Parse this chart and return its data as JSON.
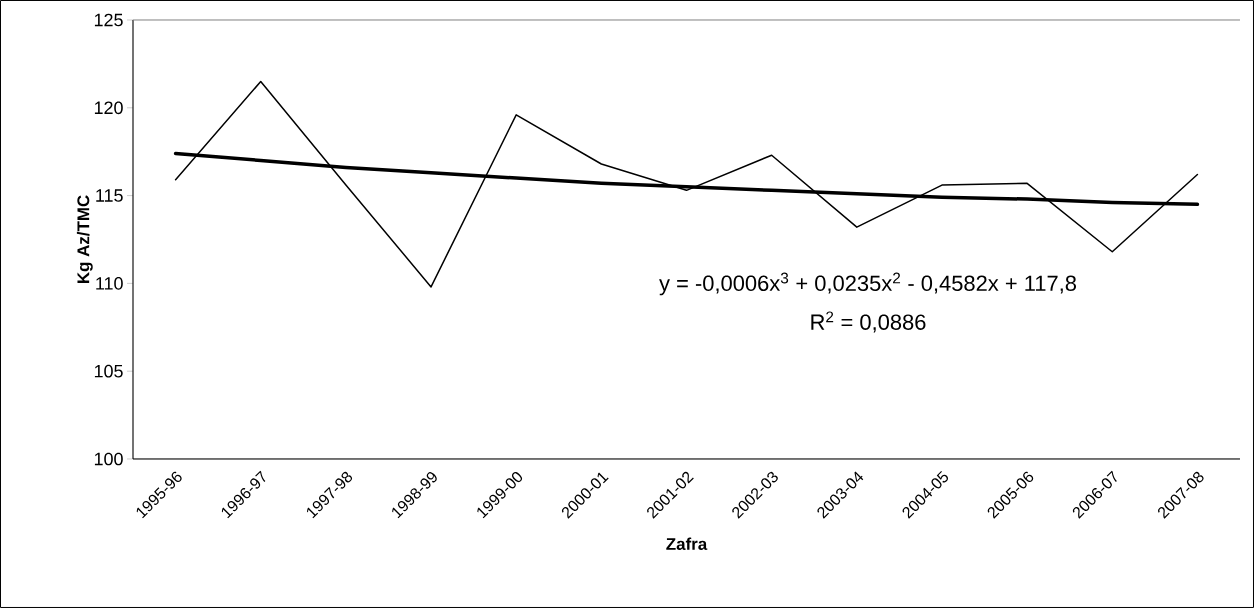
{
  "chart_data": {
    "type": "line",
    "xlabel": "Zafra",
    "ylabel": "Kg Az/TMC",
    "categories": [
      "1995-96",
      "1996-97",
      "1997-98",
      "1998-99",
      "1999-00",
      "2000-01",
      "2001-02",
      "2002-03",
      "2003-04",
      "2004-05",
      "2005-06",
      "2006-07",
      "2007-08"
    ],
    "series": [
      {
        "color": "#000000",
        "values": [
          115.9,
          121.5,
          115.6,
          109.8,
          119.6,
          116.8,
          115.3,
          117.3,
          113.2,
          115.6,
          115.7,
          111.8,
          116.2
        ]
      },
      {
        "type": "line",
        "color": "#000000",
        "values": [
          117.4,
          117.0,
          116.6,
          116.3,
          116.0,
          115.7,
          115.5,
          115.3,
          115.1,
          114.9,
          114.8,
          114.6,
          114.5
        ]
      }
    ],
    "ylim": [
      100,
      125
    ],
    "yticks": [
      100,
      105,
      110,
      115,
      120,
      125
    ],
    "annotations": [
      "y = -0,0006x$^{3}$ + 0,0235x$^{2}$ - 0,4582x + 117,8",
      "R$^{2}$ = 0,0886"
    ],
    "grid": false,
    "marker": "none",
    "line_style": "solid"
  }
}
